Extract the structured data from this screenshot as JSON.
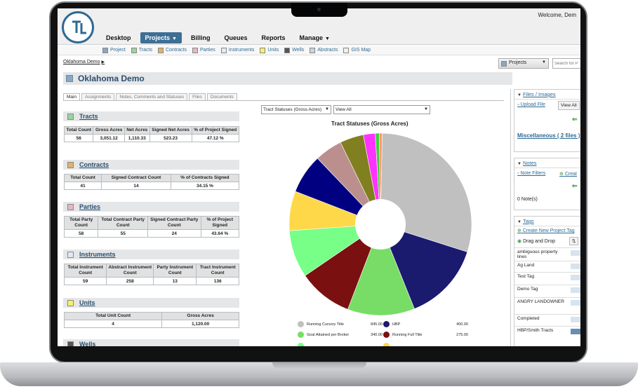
{
  "header": {
    "welcome": "Welcome, Dem",
    "nav": [
      {
        "label": "Desktop"
      },
      {
        "label": "Projects",
        "active": true,
        "caret": "▼"
      },
      {
        "label": "Billing"
      },
      {
        "label": "Queues"
      },
      {
        "label": "Reports"
      },
      {
        "label": "Manage",
        "caret": "▼"
      }
    ]
  },
  "subnav": [
    {
      "label": "Project",
      "color": "#8aa7c2"
    },
    {
      "label": "Tracts",
      "color": "#9dd39d"
    },
    {
      "label": "Contracts",
      "color": "#e2b26a"
    },
    {
      "label": "Parties",
      "color": "#e8b7c4"
    },
    {
      "label": "Instruments",
      "color": "#dfeaf5"
    },
    {
      "label": "Units",
      "color": "#f7f06a"
    },
    {
      "label": "Wells",
      "color": "#555555"
    },
    {
      "label": "Abstracts",
      "color": "#c9d4e0"
    },
    {
      "label": "GIS Map",
      "color": "#f0f0f0"
    }
  ],
  "breadcrumb": {
    "label": "Oklahoma Demo",
    "arrow": "▶"
  },
  "project_select": {
    "label": "Projects"
  },
  "search": {
    "placeholder": "Search for P"
  },
  "page_title": "Oklahoma Demo",
  "tabs": [
    "Main",
    "Assignments",
    "Notes, Comments and Statuses",
    "Files",
    "Documents"
  ],
  "sections": {
    "tracts": {
      "title": "Tracts",
      "color": "#9dd39d",
      "headers": [
        "Total Count",
        "Gross Acres",
        "Net Acres",
        "Signed Net Acres",
        "% of Project Signed"
      ],
      "values": [
        "56",
        "3,051.12",
        "1,110.33",
        "523.23",
        "47.12 %"
      ]
    },
    "contracts": {
      "title": "Contracts",
      "color": "#e2b26a",
      "headers": [
        "Total Count",
        "Signed Contract Count",
        "% of Contracts Signed"
      ],
      "values": [
        "41",
        "14",
        "34.15 %"
      ]
    },
    "parties": {
      "title": "Parties",
      "color": "#e8b7c4",
      "headers": [
        "Total Party Count",
        "Total Contract Party Count",
        "Signed Contract Party Count",
        "% of Project Signed"
      ],
      "values": [
        "58",
        "55",
        "24",
        "43.64 %"
      ]
    },
    "instruments": {
      "title": "Instruments",
      "color": "#dfeaf5",
      "headers": [
        "Total Instrument Count",
        "Abstract Instrument Count",
        "Party Instrument Count",
        "Tract Instrument Count"
      ],
      "values": [
        "59",
        "258",
        "13",
        "136"
      ]
    },
    "units": {
      "title": "Units",
      "color": "#f7f06a",
      "headers": [
        "Total Unit Count",
        "Gross Acres"
      ],
      "values": [
        "4",
        "1,120.00"
      ]
    },
    "wells": {
      "title": "Wells",
      "color": "#555555"
    }
  },
  "chart_controls": {
    "select1": "Tract Statuses (Gross Acres)",
    "select2": "View All"
  },
  "chart_data": {
    "type": "pie",
    "title": "Tract Statuses (Gross Acres)",
    "donut": true,
    "slices": [
      {
        "label": "Running Cursory Title",
        "value": 845.0,
        "color": "#c0c0c0"
      },
      {
        "label": "HBP",
        "value": 400.0,
        "color": "#1a1a6e"
      },
      {
        "label": "Goal Attained per Broker",
        "value": 340.0,
        "color": "#77dd66"
      },
      {
        "label": "Running Full Title",
        "value": 275.0,
        "color": "#7a1010"
      },
      {
        "label": "",
        "value": 240.0,
        "color": "#77ff88"
      },
      {
        "label": "",
        "value": 200.0,
        "color": "#ffd84a"
      },
      {
        "label": "",
        "value": 200.0,
        "color": "#000080"
      },
      {
        "label": "",
        "value": 140.0,
        "color": "#bc8f8f"
      },
      {
        "label": "",
        "value": 120.0,
        "color": "#808020"
      },
      {
        "label": "",
        "value": 60.0,
        "color": "#ff33ff"
      },
      {
        "label": "",
        "value": 20.0,
        "color": "#44cc44"
      },
      {
        "label": "",
        "value": 15.0,
        "color": "#ff9966"
      }
    ],
    "legend_visible": [
      {
        "label": "Running Cursory Title",
        "value": "845.00",
        "color": "#c0c0c0"
      },
      {
        "label": "HBP",
        "value": "400.00",
        "color": "#1a1a6e"
      },
      {
        "label": "Goal Attained per Broker",
        "value": "340.00",
        "color": "#77dd66"
      },
      {
        "label": "Running Full Title",
        "value": "275.00",
        "color": "#7a1010"
      }
    ]
  },
  "right": {
    "files": {
      "title": "Files / Images",
      "upload": "Upload File",
      "view": "View All",
      "misc": "Miscellaneous ( 2 files )"
    },
    "notes": {
      "title": "Notes",
      "filters": "Note Filters",
      "create": "Creat",
      "count": "0 Note(s)"
    },
    "tags": {
      "title": "Tags",
      "create": "Create New Project Tag",
      "drag": "Drag and Drop",
      "items": [
        "ambiguous property lines",
        "Ag Land",
        "Test Tag",
        "Demo Tag",
        "ANGRY LANDOWNER",
        "Completed",
        "HBP/Smith Tracts"
      ]
    }
  }
}
